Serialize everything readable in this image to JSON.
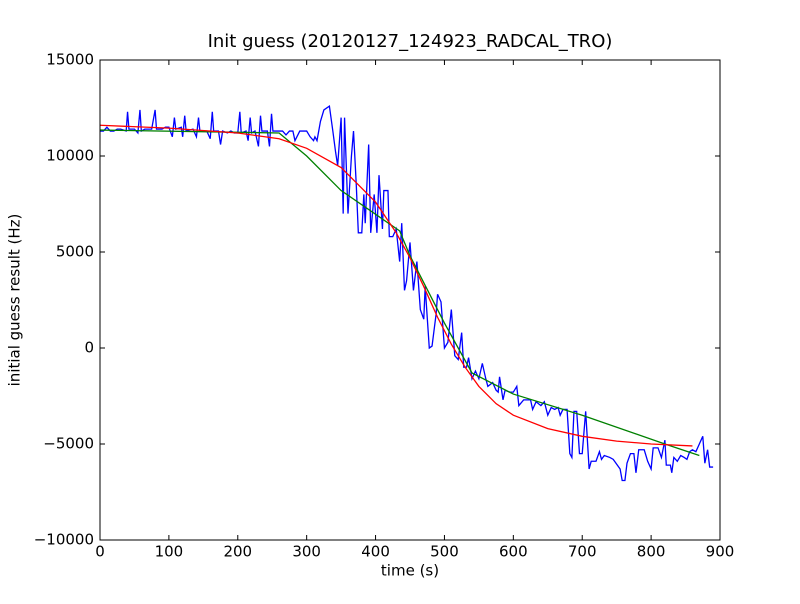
{
  "chart_data": {
    "type": "line",
    "title": "Init guess (20120127_124923_RADCAL_TRO)",
    "x_label": "time (s)",
    "y_label": "initial guess result (Hz)",
    "xlim": [
      0,
      900
    ],
    "xticks": [
      0,
      100,
      200,
      300,
      400,
      500,
      600,
      700,
      800,
      900
    ],
    "ylim": [
      -10000,
      15000
    ],
    "yticks": [
      {
        "value": -10000,
        "label": "−10000"
      },
      {
        "value": -5000,
        "label": "−5000"
      },
      0,
      5000,
      10000,
      15000
    ],
    "series": [
      {
        "color": "#0000ff",
        "x": [
          0,
          5,
          10,
          15,
          20,
          25,
          30,
          38,
          40,
          42,
          50,
          55,
          58,
          60,
          65,
          70,
          75,
          80,
          82,
          90,
          95,
          100,
          105,
          108,
          110,
          118,
          120,
          123,
          125,
          135,
          140,
          143,
          145,
          155,
          160,
          163,
          165,
          172,
          175,
          178,
          185,
          190,
          195,
          200,
          203,
          205,
          212,
          215,
          218,
          220,
          225,
          230,
          233,
          235,
          243,
          246,
          249,
          251,
          260,
          265,
          270,
          275,
          280,
          283,
          290,
          295,
          300,
          305,
          310,
          312,
          315,
          320,
          325,
          333,
          338,
          342,
          345,
          350,
          353,
          355,
          360,
          365,
          368,
          372,
          375,
          380,
          383,
          385,
          390,
          393,
          398,
          402,
          405,
          410,
          412,
          418,
          420,
          425,
          430,
          435,
          438,
          442,
          445,
          450,
          455,
          460,
          465,
          470,
          472,
          478,
          482,
          488,
          490,
          495,
          500,
          505,
          510,
          515,
          520,
          525,
          528,
          532,
          535,
          540,
          545,
          550,
          555,
          560,
          563,
          570,
          575,
          578,
          580,
          585,
          588,
          595,
          600,
          605,
          608,
          615,
          620,
          625,
          628,
          633,
          640,
          645,
          650,
          655,
          660,
          665,
          668,
          672,
          678,
          682,
          685,
          688,
          692,
          696,
          700,
          705,
          710,
          713,
          720,
          725,
          728,
          732,
          740,
          745,
          755,
          758,
          762,
          765,
          770,
          775,
          778,
          782,
          790,
          795,
          800,
          803,
          810,
          815,
          820,
          822,
          828,
          830,
          833,
          838,
          843,
          848,
          852,
          856,
          860,
          865,
          870,
          875,
          878,
          882,
          885,
          890
        ],
        "values": [
          11300,
          11300,
          11500,
          11300,
          11300,
          11400,
          11400,
          11300,
          12300,
          11400,
          11400,
          11200,
          12400,
          11300,
          11400,
          11400,
          11400,
          12400,
          11400,
          11400,
          11500,
          11500,
          11000,
          12000,
          11400,
          11500,
          11000,
          12100,
          11300,
          11400,
          11000,
          12000,
          11300,
          11300,
          10900,
          12300,
          11300,
          11300,
          10600,
          11300,
          11200,
          11300,
          11200,
          11200,
          12300,
          11200,
          11300,
          10800,
          12000,
          11200,
          11300,
          10500,
          12100,
          11300,
          11300,
          10500,
          12200,
          11300,
          11300,
          11300,
          11100,
          11300,
          11300,
          10800,
          11300,
          11300,
          11300,
          11000,
          10800,
          11000,
          10800,
          11800,
          12400,
          12600,
          11300,
          10200,
          9500,
          12000,
          7000,
          12000,
          7000,
          10000,
          11300,
          8500,
          6000,
          6000,
          8000,
          6500,
          10600,
          6000,
          8000,
          6000,
          9000,
          6200,
          8200,
          8200,
          5800,
          5800,
          6200,
          4500,
          6500,
          3000,
          3500,
          5500,
          3000,
          4500,
          2000,
          1500,
          3200,
          0,
          100,
          1800,
          2800,
          2400,
          0,
          300,
          2000,
          -400,
          -600,
          800,
          -1000,
          -1000,
          -500,
          -1600,
          -1200,
          -1600,
          -800,
          -1600,
          -2000,
          -1800,
          -2200,
          -2300,
          -1500,
          -2700,
          -2200,
          -2300,
          -2300,
          -2000,
          -3000,
          -2700,
          -2700,
          -2700,
          -3200,
          -2800,
          -3000,
          -2800,
          -3500,
          -3100,
          -3200,
          -3100,
          -3500,
          -3200,
          -3200,
          -5500,
          -5700,
          -3300,
          -3300,
          -5500,
          -5500,
          -3300,
          -6300,
          -5900,
          -5900,
          -5400,
          -5800,
          -5600,
          -5700,
          -5800,
          -6300,
          -6900,
          -6900,
          -6000,
          -5500,
          -5500,
          -6500,
          -5300,
          -5300,
          -5900,
          -6300,
          -5200,
          -5200,
          -5700,
          -4800,
          -6100,
          -6100,
          -6500,
          -5700,
          -5900,
          -5600,
          -5700,
          -5800,
          -5400,
          -5300,
          -5400,
          -5000,
          -4600,
          -6000,
          -5300,
          -6200,
          -6200
        ]
      },
      {
        "color": "#008000",
        "x": [
          0,
          260,
          300,
          350,
          435,
          450,
          500,
          540,
          600,
          700,
          820,
          870
        ],
        "values": [
          11350,
          11200,
          10000,
          8200,
          6100,
          4800,
          1300,
          -1300,
          -2400,
          -3500,
          -5000,
          -5600
        ]
      },
      {
        "color": "#ff0000",
        "x": [
          0,
          100,
          200,
          260,
          300,
          350,
          400,
          430,
          450,
          470,
          490,
          510,
          530,
          550,
          575,
          600,
          650,
          700,
          750,
          800,
          860
        ],
        "values": [
          11600,
          11450,
          11200,
          10900,
          10400,
          9400,
          7600,
          6000,
          4700,
          3200,
          1600,
          200,
          -1000,
          -2000,
          -2900,
          -3500,
          -4200,
          -4600,
          -4850,
          -5000,
          -5100
        ]
      }
    ]
  }
}
